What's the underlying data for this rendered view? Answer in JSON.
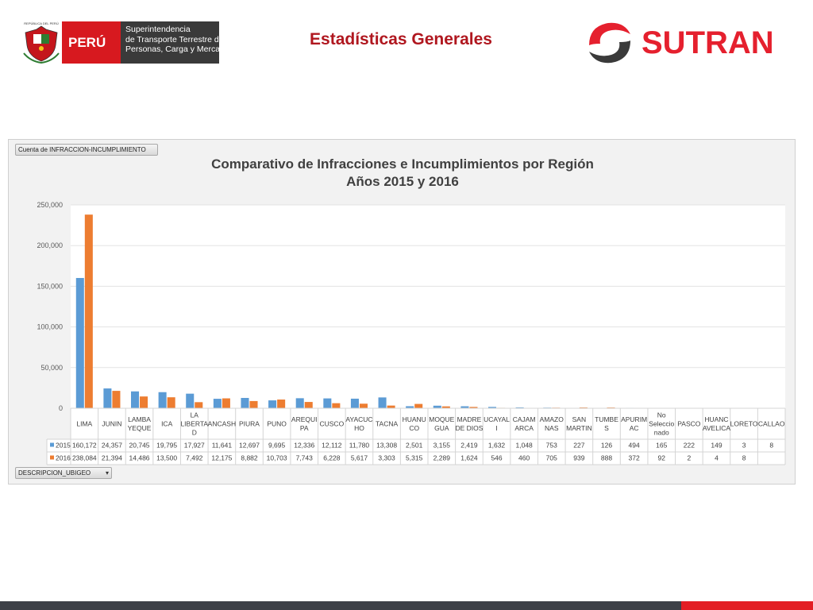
{
  "header": {
    "shield_caption": "REPÚBLICA DEL PERÚ",
    "peru_word": "PERÚ",
    "agency_lines": [
      "Superintendencia",
      "de Transporte Terrestre de",
      "Personas, Carga y Mercancías"
    ],
    "page_title": "Estadísticas Generales",
    "brand": "SUTRAN",
    "colors": {
      "title": "#b0171f",
      "brand_red": "#e5202e",
      "peru_red": "#d7191f"
    }
  },
  "panel": {
    "count_button_label": "Cuenta de INFRACCION-INCUMPLIMIENTO",
    "filter_button_label": "DESCRIPCION_UBIGEO",
    "filter_icon": "filter-dropdown-icon"
  },
  "chart_data": {
    "type": "bar",
    "title": "Comparativo de Infracciones e Incumplimientos por Región",
    "subtitle": "Años 2015 y 2016",
    "xlabel": "",
    "ylabel": "",
    "ylim": [
      0,
      250000
    ],
    "yticks": [
      0,
      50000,
      100000,
      150000,
      200000,
      250000
    ],
    "ytick_labels": [
      "0",
      "50,000",
      "100,000",
      "150,000",
      "200,000",
      "250,000"
    ],
    "grid": true,
    "legend": "in data table",
    "categories": [
      "LIMA",
      "JUNIN",
      "LAMBA YEQUE",
      "ICA",
      "LA LIBERTA D",
      "ANCASH",
      "PIURA",
      "PUNO",
      "AREQUI PA",
      "CUSCO",
      "AYACUC HO",
      "TACNA",
      "HUANU CO",
      "MOQUE GUA",
      "MADRE DE DIOS",
      "UCAYAL I",
      "CAJAM ARCA",
      "AMAZO NAS",
      "SAN MARTIN",
      "TUMBE S",
      "APURIM AC",
      "No Seleccio nado",
      "PASCO",
      "HUANC AVELICA",
      "LORETO",
      "CALLAO"
    ],
    "category_lines": [
      [
        "LIMA"
      ],
      [
        "JUNIN"
      ],
      [
        "LAMBA",
        "YEQUE"
      ],
      [
        "ICA"
      ],
      [
        "LA",
        "LIBERTA",
        "D"
      ],
      [
        "ANCASH"
      ],
      [
        "PIURA"
      ],
      [
        "PUNO"
      ],
      [
        "AREQUI",
        "PA"
      ],
      [
        "CUSCO"
      ],
      [
        "AYACUC",
        "HO"
      ],
      [
        "TACNA"
      ],
      [
        "HUANU",
        "CO"
      ],
      [
        "MOQUE",
        "GUA"
      ],
      [
        "MADRE",
        "DE DIOS"
      ],
      [
        "UCAYAL",
        "I"
      ],
      [
        "CAJAM",
        "ARCA"
      ],
      [
        "AMAZO",
        "NAS"
      ],
      [
        "SAN",
        "MARTIN"
      ],
      [
        "TUMBE",
        "S"
      ],
      [
        "APURIM",
        "AC"
      ],
      [
        "No",
        "Seleccio",
        "nado"
      ],
      [
        "PASCO"
      ],
      [
        "HUANC",
        "AVELICA"
      ],
      [
        "LORETO"
      ],
      [
        "CALLAO"
      ]
    ],
    "series": [
      {
        "name": "2015",
        "color": "#5b9bd5",
        "values": [
          160172,
          24357,
          20745,
          19795,
          17927,
          11641,
          12697,
          9695,
          12336,
          12112,
          11780,
          13308,
          2501,
          3155,
          2419,
          1632,
          1048,
          753,
          227,
          126,
          494,
          165,
          222,
          149,
          3,
          8
        ],
        "labels": [
          "160,172",
          "24,357",
          "20,745",
          "19,795",
          "17,927",
          "11,641",
          "12,697",
          "9,695",
          "12,336",
          "12,112",
          "11,780",
          "13,308",
          "2,501",
          "3,155",
          "2,419",
          "1,632",
          "1,048",
          "753",
          "227",
          "126",
          "494",
          "165",
          "222",
          "149",
          "3",
          "8"
        ]
      },
      {
        "name": "2016",
        "color": "#ed7d31",
        "values": [
          238084,
          21394,
          14486,
          13500,
          7492,
          12175,
          8882,
          10703,
          7743,
          6228,
          5617,
          3303,
          5315,
          2289,
          1624,
          546,
          460,
          705,
          939,
          888,
          372,
          92,
          2,
          4,
          8,
          null
        ],
        "labels": [
          "238,084",
          "21,394",
          "14,486",
          "13,500",
          "7,492",
          "12,175",
          "8,882",
          "10,703",
          "7,743",
          "6,228",
          "5,617",
          "3,303",
          "5,315",
          "2,289",
          "1,624",
          "546",
          "460",
          "705",
          "939",
          "888",
          "372",
          "92",
          "2",
          "4",
          "8",
          ""
        ]
      }
    ]
  }
}
